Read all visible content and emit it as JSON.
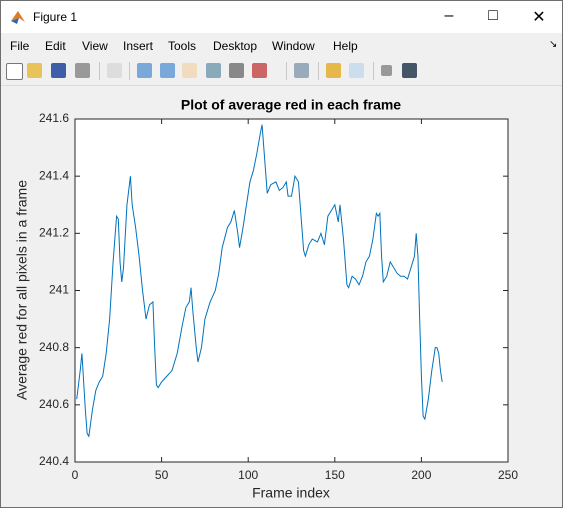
{
  "window": {
    "title": "Figure 1",
    "menu": [
      "File",
      "Edit",
      "View",
      "Insert",
      "Tools",
      "Desktop",
      "Window",
      "Help"
    ]
  },
  "chart_data": {
    "type": "line",
    "title": "Plot of average red in each frame",
    "x_label": "Frame index",
    "y_label": "Average red for all pixels in a frame",
    "color": "#0072bd",
    "x": [
      1,
      3,
      4,
      5,
      6,
      7,
      8,
      10,
      12,
      14,
      16,
      18,
      20,
      22,
      24,
      25,
      26,
      27,
      28,
      30,
      32,
      33,
      35,
      37,
      39,
      41,
      43,
      45,
      46,
      47,
      48,
      50,
      53,
      56,
      59,
      62,
      64,
      66,
      67,
      68,
      70,
      71,
      73,
      75,
      78,
      81,
      83,
      85,
      88,
      90,
      92,
      94,
      95,
      97,
      99,
      101,
      103,
      105,
      107,
      108,
      109,
      110,
      111,
      113,
      116,
      118,
      120,
      122,
      123,
      125,
      127,
      129,
      130,
      131,
      132,
      133,
      135,
      137,
      140,
      142,
      144,
      146,
      148,
      150,
      152,
      153,
      155,
      156,
      157,
      158,
      160,
      162,
      164,
      166,
      168,
      170,
      172,
      174,
      175,
      176,
      177,
      178,
      180,
      182,
      184,
      186,
      188,
      190,
      192,
      194,
      196,
      197,
      198,
      199,
      200,
      201,
      202,
      204,
      206,
      208,
      209,
      210,
      211,
      212
    ],
    "values": [
      240.62,
      240.72,
      240.78,
      240.68,
      240.58,
      240.5,
      240.49,
      240.58,
      240.65,
      240.68,
      240.7,
      240.78,
      240.9,
      241.1,
      241.26,
      241.25,
      241.1,
      241.03,
      241.08,
      241.3,
      241.4,
      241.3,
      241.22,
      241.12,
      241.0,
      240.9,
      240.95,
      240.96,
      240.8,
      240.67,
      240.66,
      240.68,
      240.7,
      240.72,
      240.78,
      240.88,
      240.94,
      240.96,
      241.01,
      240.93,
      240.8,
      240.75,
      240.8,
      240.9,
      240.96,
      241.0,
      241.06,
      241.15,
      241.22,
      241.24,
      241.28,
      241.2,
      241.15,
      241.22,
      241.3,
      241.38,
      241.42,
      241.48,
      241.55,
      241.58,
      241.5,
      241.42,
      241.34,
      241.37,
      241.38,
      241.35,
      241.36,
      241.38,
      241.33,
      241.33,
      241.4,
      241.38,
      241.3,
      241.22,
      241.14,
      241.12,
      241.16,
      241.18,
      241.17,
      241.2,
      241.16,
      241.26,
      241.28,
      241.3,
      241.24,
      241.3,
      241.18,
      241.1,
      241.02,
      241.01,
      241.05,
      241.04,
      241.02,
      241.05,
      241.1,
      241.12,
      241.18,
      241.27,
      241.26,
      241.27,
      241.12,
      241.03,
      241.05,
      241.1,
      241.08,
      241.06,
      241.05,
      241.05,
      241.04,
      241.08,
      241.12,
      241.2,
      241.12,
      240.9,
      240.7,
      240.56,
      240.55,
      240.62,
      240.72,
      240.8,
      240.8,
      240.78,
      240.72,
      240.68
    ],
    "xlim": [
      0,
      250
    ],
    "xticks": [
      0,
      50,
      100,
      150,
      200,
      250
    ],
    "ylim": [
      240.4,
      241.6
    ],
    "yticks": [
      240.4,
      240.6,
      240.8,
      241,
      241.2,
      241.4,
      241.6
    ],
    "grid": false
  }
}
